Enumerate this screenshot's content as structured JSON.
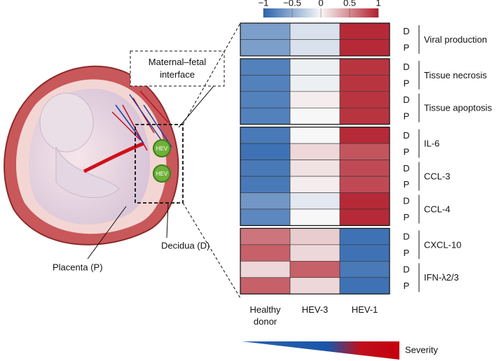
{
  "chart_data": {
    "type": "heatmap",
    "colormap": [
      "#2a63ac",
      "#f7f7f7",
      "#b11f2c"
    ],
    "clim": [
      -1,
      1
    ],
    "cticks": [
      {
        "value": -1,
        "label": "−1"
      },
      {
        "value": -0.5,
        "label": "−0.5"
      },
      0,
      0.5,
      1
    ],
    "columns": [
      "Healthy donor",
      "HEV-3",
      "HEV-1"
    ],
    "blocks": [
      {
        "groups": [
          {
            "label": "Viral production",
            "rows": [
              {
                "label": "D",
                "values": [
                  -0.6,
                  -0.15,
                  0.95
                ]
              },
              {
                "label": "P",
                "values": [
                  -0.6,
                  -0.15,
                  0.95
                ]
              }
            ]
          }
        ]
      },
      {
        "groups": [
          {
            "label": "Tissue necrosis",
            "rows": [
              {
                "label": "D",
                "values": [
                  -0.8,
                  -0.05,
                  0.9
                ]
              },
              {
                "label": "P",
                "values": [
                  -0.8,
                  -0.05,
                  0.9
                ]
              }
            ]
          },
          {
            "label": "Tissue apoptosis",
            "rows": [
              {
                "label": "D",
                "values": [
                  -0.8,
                  0.05,
                  0.9
                ]
              },
              {
                "label": "P",
                "values": [
                  -0.8,
                  0,
                  0.9
                ]
              }
            ]
          }
        ]
      },
      {
        "groups": [
          {
            "label": "IL-6",
            "rows": [
              {
                "label": "D",
                "values": [
                  -0.85,
                  0,
                  0.95
                ]
              },
              {
                "label": "P",
                "values": [
                  -0.9,
                  0.15,
                  0.75
                ]
              }
            ]
          },
          {
            "label": "CCL-3",
            "rows": [
              {
                "label": "D",
                "values": [
                  -0.85,
                  0.1,
                  0.8
                ]
              },
              {
                "label": "P",
                "values": [
                  -0.85,
                  0.05,
                  0.8
                ]
              }
            ]
          },
          {
            "label": "CCL-4",
            "rows": [
              {
                "label": "D",
                "values": [
                  -0.65,
                  -0.1,
                  0.95
                ]
              },
              {
                "label": "P",
                "values": [
                  -0.75,
                  0,
                  0.95
                ]
              }
            ]
          }
        ]
      },
      {
        "groups": [
          {
            "label": "CXCL-10",
            "rows": [
              {
                "label": "D",
                "values": [
                  0.6,
                  0.2,
                  -0.9
                ]
              },
              {
                "label": "P",
                "values": [
                  0.7,
                  0.15,
                  -0.9
                ]
              }
            ]
          },
          {
            "label": "IFN-λ2/3",
            "rows": [
              {
                "label": "D",
                "values": [
                  0.15,
                  0.7,
                  -0.85
                ]
              },
              {
                "label": "P",
                "values": [
                  0.7,
                  0.15,
                  -0.9
                ]
              }
            ]
          }
        ]
      }
    ],
    "annotations": {
      "interface": "Maternal–fetal interface",
      "placenta": "Placenta (P)",
      "decidua": "Decidua (D)",
      "virus": "HEV",
      "severity": "Severity"
    }
  }
}
